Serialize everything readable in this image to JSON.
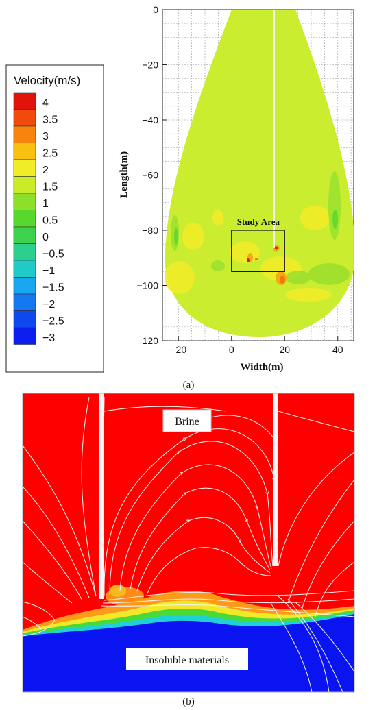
{
  "figure": {
    "panel_a_caption": "(a)",
    "panel_b_caption": "(b)"
  },
  "chart_data": [
    {
      "type": "contour",
      "panel": "a",
      "xlabel": "Width(m)",
      "ylabel": "Length(m)",
      "xlim": [
        -26,
        46
      ],
      "ylim": [
        -120,
        0
      ],
      "xticks": [
        -20,
        0,
        20,
        40
      ],
      "yticks": [
        0,
        -20,
        -40,
        -60,
        -80,
        -100,
        -120
      ],
      "grid": true,
      "dominant_level": 2,
      "annotation": "Study Area",
      "study_area": {
        "x": [
          0,
          20
        ],
        "y": [
          -80,
          -95
        ]
      },
      "legend": {
        "title": "Velocity(m/s)",
        "placement": "left",
        "levels": [
          "4",
          "3.5",
          "3",
          "2.5",
          "2",
          "1.5",
          "1",
          "0.5",
          "0",
          "−0.5",
          "−1",
          "−1.5",
          "−2",
          "−2.5",
          "−3"
        ],
        "colors": [
          "#e0140a",
          "#f04a0c",
          "#f8840e",
          "#f8c010",
          "#f0ec28",
          "#c8ec28",
          "#8ce02a",
          "#58d82c",
          "#3cd24c",
          "#2cd08c",
          "#20cac6",
          "#18a6f0",
          "#1478f0",
          "#1048f0",
          "#0c1ef0"
        ]
      }
    },
    {
      "type": "streamline",
      "panel": "b",
      "labels": {
        "top": "Brine",
        "bottom": "Insoluble materials"
      },
      "colors": {
        "brine": "#ff0000",
        "insoluble": "#0a14f0",
        "streamline": "#f4f4f4"
      }
    }
  ]
}
